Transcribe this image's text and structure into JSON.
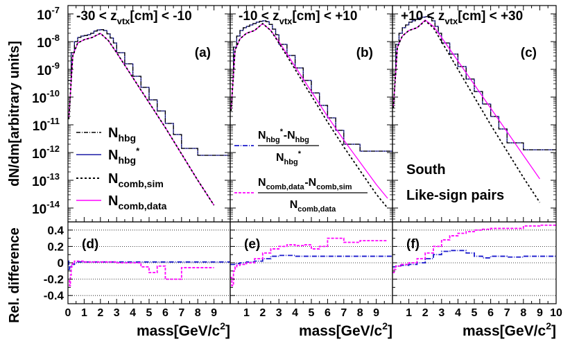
{
  "chart_data": {
    "type": "line",
    "colors": {
      "nhbg": "#000000",
      "nhbgstar": "#1a1aa6",
      "ncombsim": "#000000",
      "ncombdata": "#ff00ff",
      "diff1": "#1a1acc",
      "diff2": "#ff00ff",
      "grid": "#000000"
    },
    "y_axis_top": {
      "label": "dN/dm[arbitrary units]",
      "scale": "log",
      "ylim_exp": [
        -14.5,
        -6.7
      ],
      "ticks": [
        {
          "base": "10",
          "exp": "-7"
        },
        {
          "base": "10",
          "exp": "-8"
        },
        {
          "base": "10",
          "exp": "-9"
        },
        {
          "base": "10",
          "exp": "-10"
        },
        {
          "base": "10",
          "exp": "-11"
        },
        {
          "base": "10",
          "exp": "-12"
        },
        {
          "base": "10",
          "exp": "-13"
        },
        {
          "base": "10",
          "exp": "-14"
        }
      ],
      "tick_values": [
        -7,
        -8,
        -9,
        -10,
        -11,
        -12,
        -13,
        -14
      ]
    },
    "y_axis_bottom": {
      "label": "Rel. difference",
      "ylim": [
        -0.5,
        0.5
      ],
      "ticks": [
        "0.4",
        "0.2",
        "0",
        "-0.2",
        "-0.4"
      ],
      "tick_values": [
        0.4,
        0.2,
        0,
        -0.2,
        -0.4
      ]
    },
    "x_axis": {
      "label": "mass[GeV/c",
      "label_sup": "2",
      "label_end": "]",
      "xlim": [
        0,
        10
      ],
      "panel_ticks": [
        [
          "0",
          "1",
          "2",
          "3",
          "4",
          "5",
          "6",
          "7",
          "8",
          "9"
        ],
        [
          "1",
          "2",
          "3",
          "4",
          "5",
          "6",
          "7",
          "8",
          "9"
        ],
        [
          "1",
          "2",
          "3",
          "4",
          "5",
          "6",
          "7",
          "8",
          "9",
          "10"
        ]
      ]
    },
    "legend_top": [
      {
        "main": "N",
        "sub": "hbg",
        "sup": ""
      },
      {
        "main": "N",
        "sub": "hbg",
        "sup": "*"
      },
      {
        "main": "N",
        "sub": "comb,sim",
        "sup": ""
      },
      {
        "main": "N",
        "sub": "comb,data",
        "sup": ""
      }
    ],
    "legend_bottom": [
      {
        "num": [
          [
            "N",
            "hbg",
            "*"
          ],
          [
            "-N",
            "hbg",
            ""
          ]
        ],
        "den": [
          "N",
          "hbg",
          "*"
        ]
      },
      {
        "num": [
          [
            "N",
            "comb,data",
            ""
          ],
          [
            "-N",
            "comb,sim",
            ""
          ]
        ],
        "den": [
          "N",
          "comb,data",
          ""
        ]
      }
    ],
    "annotation": {
      "line1": "South",
      "line2": "Like-sign pairs"
    },
    "panels": [
      {
        "title_prefix": "-30 < z",
        "title_sub": "vtx",
        "title_suffix": "[cm] < -10",
        "top_label": "(a)",
        "bottom_label": "(d)",
        "hist_x": [
          0,
          0.2,
          0.4,
          0.6,
          0.8,
          1,
          1.2,
          1.4,
          1.6,
          1.8,
          2,
          2.2,
          2.4,
          2.6,
          2.8,
          3,
          3.5,
          4,
          4.5,
          5,
          5.5,
          6,
          6.5,
          7,
          8,
          10
        ],
        "hist_y": [
          -9.4,
          -8.4,
          -8.0,
          -7.85,
          -7.8,
          -7.78,
          -7.75,
          -7.7,
          -7.62,
          -7.58,
          -7.57,
          -7.6,
          -7.72,
          -7.87,
          -8.05,
          -8.4,
          -8.8,
          -9.25,
          -9.65,
          -10.1,
          -10.5,
          -10.95,
          -11.35,
          -11.85,
          -12.1
        ],
        "sim_x": [
          0.05,
          0.3,
          0.6,
          1,
          1.5,
          2,
          2.5,
          3,
          4,
          5,
          6,
          7,
          8,
          9
        ],
        "sim_y": [
          -10.8,
          -8.5,
          -8.05,
          -7.93,
          -7.85,
          -7.7,
          -7.97,
          -8.4,
          -9.3,
          -10.2,
          -11.1,
          -12.05,
          -13.0,
          -13.9
        ],
        "data_y": [
          -10.8,
          -8.5,
          -8.05,
          -7.93,
          -7.85,
          -7.7,
          -7.97,
          -8.4,
          -9.3,
          -10.2,
          -11.1,
          -12.05,
          -13.0,
          -13.9
        ],
        "diff1_x": [
          0,
          0.05,
          0.1,
          0.2,
          0.4,
          0.6,
          1,
          10
        ],
        "diff1_y": [
          0.02,
          -0.08,
          -0.05,
          -0.02,
          0,
          0.01,
          0.01,
          0.01
        ],
        "diff2_x": [
          0.05,
          0.1,
          0.15,
          0.2,
          0.25,
          0.3,
          0.4,
          0.6,
          1,
          2,
          3,
          4,
          4.5,
          5,
          5.5,
          6,
          7,
          8,
          9
        ],
        "diff2_y": [
          -0.22,
          -0.28,
          -0.15,
          -0.05,
          -0.02,
          0,
          0.02,
          0.02,
          0.01,
          0.01,
          0,
          0,
          -0.05,
          -0.12,
          -0.04,
          -0.2,
          -0.06,
          -0.06
        ]
      },
      {
        "title_prefix": "-10 < z",
        "title_sub": "vtx",
        "title_suffix": "[cm] < +10",
        "top_label": "(b)",
        "bottom_label": "(e)",
        "hist_x": [
          0,
          0.2,
          0.4,
          0.6,
          0.8,
          1,
          1.2,
          1.4,
          1.6,
          1.8,
          2,
          2.2,
          2.4,
          2.6,
          2.8,
          3,
          3.5,
          4,
          4.5,
          5,
          5.5,
          6,
          6.5,
          7,
          8,
          10
        ],
        "hist_y": [
          -9.3,
          -8.2,
          -7.8,
          -7.6,
          -7.5,
          -7.45,
          -7.4,
          -7.35,
          -7.3,
          -7.27,
          -7.25,
          -7.28,
          -7.38,
          -7.55,
          -7.75,
          -8.1,
          -8.5,
          -8.95,
          -9.4,
          -9.85,
          -10.3,
          -10.75,
          -11.2,
          -11.7,
          -11.95
        ],
        "sim_x": [
          0.05,
          0.3,
          0.6,
          1,
          1.5,
          2,
          2.5,
          3,
          4,
          5,
          6,
          7,
          8,
          9,
          9.7
        ],
        "sim_y": [
          -10.5,
          -8.3,
          -7.9,
          -7.7,
          -7.6,
          -7.35,
          -7.6,
          -8.05,
          -9.0,
          -9.95,
          -10.9,
          -11.8,
          -12.65,
          -13.5,
          -14.0
        ],
        "data_y": [
          -10.5,
          -8.3,
          -7.9,
          -7.7,
          -7.6,
          -7.35,
          -7.6,
          -8.0,
          -8.9,
          -9.8,
          -10.7,
          -11.55,
          -12.35,
          -13.15,
          -13.65
        ],
        "diff1_x": [
          0,
          0.3,
          0.6,
          1,
          1.5,
          2,
          2.5,
          3,
          3.5,
          4,
          10
        ],
        "diff1_y": [
          -0.02,
          -0.01,
          0,
          0.01,
          0.02,
          0.05,
          0.08,
          0.09,
          0.09,
          0.08
        ],
        "diff2_x": [
          0,
          0.1,
          0.2,
          0.3,
          0.4,
          0.6,
          1,
          1.5,
          2,
          2.5,
          3,
          3.5,
          4,
          4.5,
          5,
          5.5,
          6,
          7,
          8,
          9.7
        ],
        "diff2_y": [
          -0.18,
          -0.28,
          -0.1,
          -0.05,
          -0.03,
          -0.02,
          0,
          0.05,
          0.12,
          0.17,
          0.2,
          0.22,
          0.21,
          0.22,
          0.17,
          0.2,
          0.3,
          0.25,
          0.27
        ]
      },
      {
        "title_prefix": "+10 < z",
        "title_sub": "vtx",
        "title_suffix": "[cm] < +30",
        "top_label": "(c)",
        "bottom_label": "(f)",
        "hist_x": [
          0,
          0.2,
          0.4,
          0.6,
          0.8,
          1,
          1.2,
          1.4,
          1.6,
          1.8,
          2,
          2.2,
          2.4,
          2.6,
          2.8,
          3,
          3.5,
          4,
          4.5,
          5,
          5.5,
          6,
          6.5,
          7,
          8,
          10
        ],
        "hist_y": [
          -9.2,
          -8.1,
          -7.7,
          -7.5,
          -7.4,
          -7.3,
          -7.25,
          -7.2,
          -7.15,
          -7.12,
          -7.1,
          -7.13,
          -7.25,
          -7.45,
          -7.7,
          -8.05,
          -8.45,
          -8.9,
          -9.35,
          -9.8,
          -10.25,
          -10.7,
          -11.15,
          -11.65,
          -11.9
        ],
        "sim_x": [
          0.05,
          0.3,
          0.6,
          1,
          1.5,
          2,
          2.5,
          3,
          4,
          5,
          6,
          7,
          8,
          9
        ],
        "sim_y": [
          -10.4,
          -8.2,
          -7.8,
          -7.6,
          -7.5,
          -7.25,
          -7.5,
          -8.0,
          -9.0,
          -10.0,
          -11.0,
          -11.95,
          -12.9,
          -13.8
        ],
        "data_y": [
          -10.4,
          -8.2,
          -7.8,
          -7.6,
          -7.5,
          -7.22,
          -7.45,
          -7.85,
          -8.7,
          -9.55,
          -10.4,
          -11.25,
          -12.1,
          -12.95
        ],
        "diff1_x": [
          0,
          0.2,
          0.5,
          1,
          1.5,
          2,
          2.5,
          3,
          3.5,
          4,
          4.5,
          5,
          5.5,
          6,
          7,
          8,
          10
        ],
        "diff1_y": [
          -0.05,
          -0.04,
          -0.03,
          -0.02,
          0,
          0.05,
          0.1,
          0.14,
          0.15,
          0.15,
          0.12,
          0.08,
          0.06,
          0.08,
          0.07,
          0.08
        ],
        "diff2_x": [
          0,
          0.1,
          0.2,
          0.5,
          1,
          1.5,
          2,
          2.5,
          3,
          3.5,
          4,
          4.5,
          5,
          5.5,
          6,
          7,
          8,
          9,
          10
        ],
        "diff2_y": [
          -0.12,
          -0.08,
          -0.04,
          -0.02,
          0,
          0.05,
          0.12,
          0.2,
          0.28,
          0.33,
          0.36,
          0.38,
          0.4,
          0.41,
          0.42,
          0.42,
          0.45,
          0.46
        ]
      }
    ]
  }
}
